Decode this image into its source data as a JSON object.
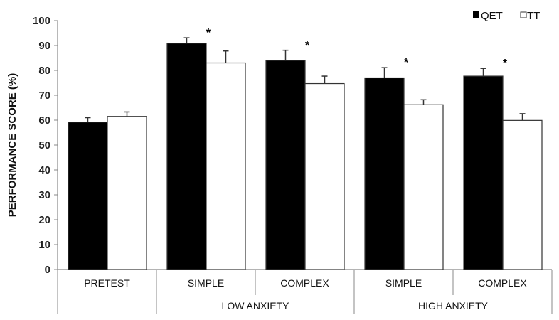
{
  "chart_data": {
    "type": "bar",
    "ylabel": "PERFORMANCE SCORE (%)",
    "ylim": [
      0,
      100
    ],
    "yticks": [
      "0",
      "10",
      "20",
      "30",
      "40",
      "50",
      "60",
      "70",
      "80",
      "90",
      "100"
    ],
    "categories": [
      "PRETEST",
      "SIMPLE",
      "COMPLEX",
      "SIMPLE",
      "COMPLEX"
    ],
    "groups": [
      {
        "label": "",
        "span": [
          0,
          0
        ]
      },
      {
        "label": "LOW ANXIETY",
        "span": [
          1,
          2
        ]
      },
      {
        "label": "HIGH ANXIETY",
        "span": [
          3,
          4
        ]
      }
    ],
    "series": [
      {
        "name": "QET",
        "color": "#000000",
        "values": [
          59.2,
          90.9,
          84.0,
          77.0,
          77.7
        ],
        "error": [
          1.8,
          2.2,
          4.1,
          4.1,
          3.1
        ]
      },
      {
        "name": "TT",
        "color": "#ffffff",
        "values": [
          61.5,
          83.0,
          74.7,
          66.2,
          59.9
        ],
        "error": [
          1.8,
          4.8,
          3.0,
          2.0,
          2.7
        ]
      }
    ],
    "significance_marker": "*",
    "significant": [
      false,
      true,
      true,
      true,
      true
    ],
    "legend": "top-right",
    "grid": false
  }
}
